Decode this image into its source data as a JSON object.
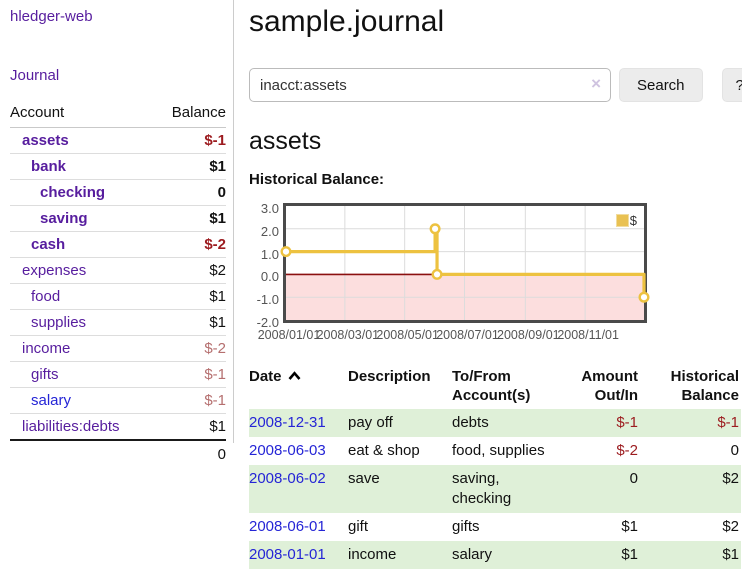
{
  "sidebar": {
    "app_title": "hledger-web",
    "journal_label": "Journal",
    "accounts_table": {
      "col_account": "Account",
      "col_balance": "Balance",
      "rows": [
        {
          "name": "assets",
          "indent": 1,
          "bold": true,
          "balance": "$-1",
          "balance_style": "neg-strong"
        },
        {
          "name": "bank",
          "indent": 2,
          "bold": true,
          "balance": "$1",
          "balance_style": "pos"
        },
        {
          "name": "checking",
          "indent": 3,
          "bold": true,
          "balance": "0",
          "balance_style": "pos"
        },
        {
          "name": "saving",
          "indent": 3,
          "bold": true,
          "balance": "$1",
          "balance_style": "pos"
        },
        {
          "name": "cash",
          "indent": 2,
          "bold": true,
          "balance": "$-2",
          "balance_style": "neg-strong"
        },
        {
          "name": "expenses",
          "indent": 1,
          "bold": false,
          "balance": "$2",
          "balance_style": "pos"
        },
        {
          "name": "food",
          "indent": 2,
          "bold": false,
          "balance": "$1",
          "balance_style": "pos"
        },
        {
          "name": "supplies",
          "indent": 2,
          "bold": false,
          "balance": "$1",
          "balance_style": "pos"
        },
        {
          "name": "income",
          "indent": 1,
          "bold": false,
          "balance": "$-2",
          "balance_style": "neg-muted"
        },
        {
          "name": "gifts",
          "indent": 2,
          "bold": false,
          "balance": "$-1",
          "balance_style": "neg-muted"
        },
        {
          "name": "salary",
          "indent": 2,
          "bold": false,
          "balance": "$-1",
          "balance_style": "neg-muted",
          "alt_link": true
        },
        {
          "name": "liabilities:debts",
          "indent": 1,
          "bold": false,
          "balance": "$1",
          "balance_style": "pos"
        }
      ],
      "total": "0"
    }
  },
  "main": {
    "title": "sample.journal",
    "account_heading": "assets"
  },
  "search": {
    "value": "inacct:assets",
    "clear_icon": "×",
    "button_label": "Search",
    "help_label": "?"
  },
  "chart_data": {
    "type": "line",
    "title": "Historical Balance:",
    "step": true,
    "ylim": [
      -2,
      3
    ],
    "yticks": [
      3.0,
      2.0,
      1.0,
      0.0,
      -1.0,
      -2.0
    ],
    "ytick_labels": [
      "3.0",
      "2.0",
      "1.0",
      "0.0",
      "-1.0",
      "-2.0"
    ],
    "xtick_labels": [
      "2008/01/01",
      "2008/03/01",
      "2008/05/01",
      "2008/07/01",
      "2008/09/01",
      "2008/11/01"
    ],
    "x_range_days": 365,
    "legend_position": "top-right",
    "grid": true,
    "colors": {
      "line": "#edc240",
      "marker_fill": "#ffffff",
      "negative_region": "#fcdede",
      "zero_line": "#8b1010",
      "gridline": "#dcdcdc",
      "legend_swatch": "#e9c152"
    },
    "series": [
      {
        "name": "$",
        "points": [
          [
            "2008-01-01",
            1
          ],
          [
            "2008-06-01",
            2
          ],
          [
            "2008-06-03",
            0
          ],
          [
            "2008-12-31",
            -1
          ]
        ]
      }
    ]
  },
  "register": {
    "headers": {
      "date": "Date",
      "description": "Description",
      "accounts": "To/From Account(s)",
      "amount": "Amount Out/In",
      "balance": "Historical Balance"
    },
    "rows": [
      {
        "date": "2008-12-31",
        "description": "pay off",
        "accounts": "debts",
        "amount": "$-1",
        "amount_neg": true,
        "balance": "$-1",
        "balance_neg": true
      },
      {
        "date": "2008-06-03",
        "description": "eat & shop",
        "accounts": "food, supplies",
        "amount": "$-2",
        "amount_neg": true,
        "balance": "0",
        "balance_neg": false
      },
      {
        "date": "2008-06-02",
        "description": "save",
        "accounts": "saving, checking",
        "amount": "0",
        "amount_neg": false,
        "balance": "$2",
        "balance_neg": false
      },
      {
        "date": "2008-06-01",
        "description": "gift",
        "accounts": "gifts",
        "amount": "$1",
        "amount_neg": false,
        "balance": "$2",
        "balance_neg": false
      },
      {
        "date": "2008-01-01",
        "description": "income",
        "accounts": "salary",
        "amount": "$1",
        "amount_neg": false,
        "balance": "$1",
        "balance_neg": false
      }
    ]
  }
}
